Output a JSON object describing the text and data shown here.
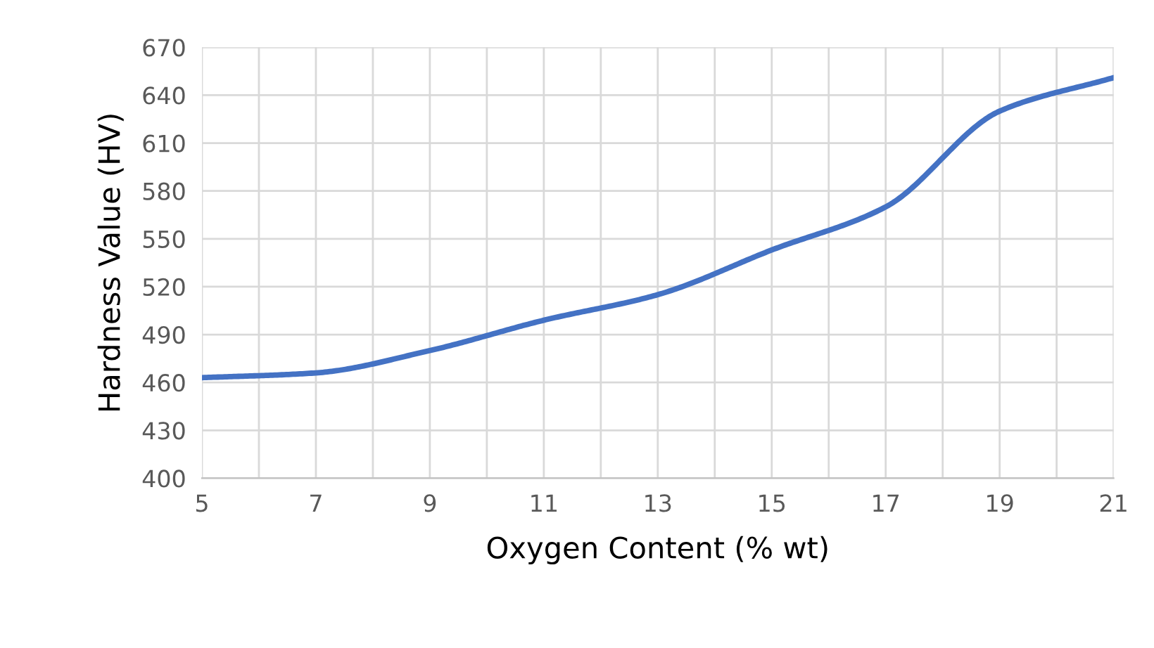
{
  "chart_data": {
    "type": "line",
    "xlabel": "Oxygen Content (% wt)",
    "ylabel": "Hardness Value (HV)",
    "x": [
      5,
      7,
      9,
      11,
      13,
      15,
      17,
      19,
      21
    ],
    "series": [
      {
        "color": "#4472c4",
        "values": [
          463,
          466,
          480,
          499,
          515,
          543,
          570,
          630,
          651
        ]
      }
    ],
    "xlim": [
      5,
      21
    ],
    "ylim": [
      400,
      670
    ],
    "xticks": [
      5,
      {
        "value": 6,
        "label": null
      },
      7,
      {
        "value": 8,
        "label": null
      },
      9,
      {
        "value": 10,
        "label": null
      },
      11,
      {
        "value": 12,
        "label": null
      },
      13,
      {
        "value": 14,
        "label": null
      },
      15,
      {
        "value": 16,
        "label": null
      },
      17,
      {
        "value": 18,
        "label": null
      },
      19,
      {
        "value": 20,
        "label": null
      },
      21
    ],
    "yticks": [
      400,
      430,
      460,
      490,
      520,
      550,
      580,
      610,
      640,
      670
    ],
    "grid": true,
    "legend": false,
    "marker": "none",
    "line_style": "solid"
  }
}
